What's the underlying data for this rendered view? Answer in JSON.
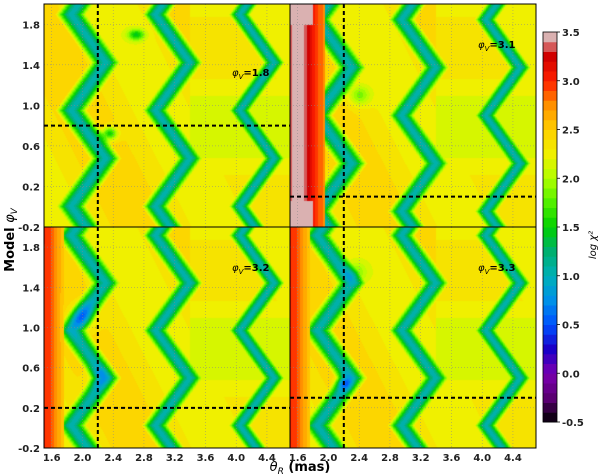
{
  "chart_data": {
    "type": "heatmap",
    "xlabel": "θ_R (mas)",
    "ylabel": "Model φ_V",
    "x_ticks": [
      1.6,
      2.0,
      2.4,
      2.8,
      3.2,
      3.6,
      4.0,
      4.4
    ],
    "y_ticks": [
      -0.2,
      0.2,
      0.6,
      1.0,
      1.4,
      1.8
    ],
    "xlim": [
      1.5,
      4.7
    ],
    "ylim": [
      -0.2,
      2.0
    ],
    "grid": true,
    "colorbar": {
      "label": "log χ²",
      "ticks": [
        -0.5,
        0.0,
        0.5,
        1.0,
        1.5,
        2.0,
        2.5,
        3.0,
        3.5
      ],
      "range": [
        -0.5,
        3.5
      ],
      "stops": [
        {
          "value": -0.5,
          "color": "#000000"
        },
        {
          "value": -0.25,
          "color": "#5a0072"
        },
        {
          "value": 0.0,
          "color": "#7a00b0"
        },
        {
          "value": 0.25,
          "color": "#1a00c8"
        },
        {
          "value": 0.5,
          "color": "#0050ff"
        },
        {
          "value": 0.75,
          "color": "#0090e8"
        },
        {
          "value": 1.0,
          "color": "#00b0b8"
        },
        {
          "value": 1.25,
          "color": "#00b070"
        },
        {
          "value": 1.5,
          "color": "#00d000"
        },
        {
          "value": 1.75,
          "color": "#50f000"
        },
        {
          "value": 2.0,
          "color": "#b0ff00"
        },
        {
          "value": 2.25,
          "color": "#f0f000"
        },
        {
          "value": 2.5,
          "color": "#ffd000"
        },
        {
          "value": 2.75,
          "color": "#ff9000"
        },
        {
          "value": 3.0,
          "color": "#ff2000"
        },
        {
          "value": 3.25,
          "color": "#d00000"
        },
        {
          "value": 3.5,
          "color": "#dddddd"
        }
      ]
    },
    "panels": [
      {
        "label": "φ_V = 1.8",
        "label_prefix": "φ",
        "label_sub": "V",
        "label_value": "=1.8",
        "best_theta": 2.2,
        "best_phi": 0.8
      },
      {
        "label": "φ_V = 3.1",
        "label_prefix": "φ",
        "label_sub": "V",
        "label_value": "=3.1",
        "best_theta": 2.2,
        "best_phi": 0.1
      },
      {
        "label": "φ_V = 3.2",
        "label_prefix": "φ",
        "label_sub": "V",
        "label_value": "=3.2",
        "best_theta": 2.2,
        "best_phi": 0.2
      },
      {
        "label": "φ_V = 3.3",
        "label_prefix": "φ",
        "label_sub": "V",
        "label_value": "=3.3",
        "best_theta": 2.2,
        "best_phi": 0.3
      }
    ]
  }
}
